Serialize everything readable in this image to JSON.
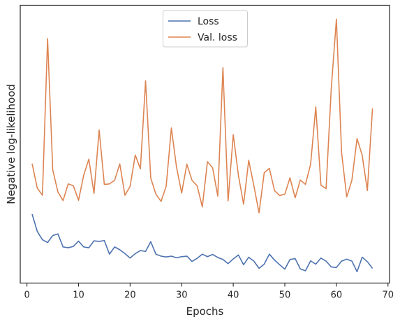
{
  "chart_data": {
    "type": "line",
    "xlabel": "Epochs",
    "ylabel": "Negative log-likelihood",
    "xlim": [
      -1.3,
      70.3
    ],
    "ylim": [
      0,
      100
    ],
    "xticks": [
      0,
      10,
      20,
      30,
      40,
      50,
      60,
      70
    ],
    "yticks": [],
    "grid": false,
    "legend_position": "top-center",
    "x": [
      1,
      2,
      3,
      4,
      5,
      6,
      7,
      8,
      9,
      10,
      11,
      12,
      13,
      14,
      15,
      16,
      17,
      18,
      19,
      20,
      21,
      22,
      23,
      24,
      25,
      26,
      27,
      28,
      29,
      30,
      31,
      32,
      33,
      34,
      35,
      36,
      37,
      38,
      39,
      40,
      41,
      42,
      43,
      44,
      45,
      46,
      47,
      48,
      49,
      50,
      51,
      52,
      53,
      54,
      55,
      56,
      57,
      58,
      59,
      60,
      61,
      62,
      63,
      64,
      65,
      66,
      67
    ],
    "series": [
      {
        "name": "Loss",
        "color": "#4c72b0",
        "values": [
          24.8,
          18.6,
          15.6,
          14.6,
          17.1,
          17.7,
          13.0,
          12.7,
          13.2,
          15.1,
          13.0,
          12.7,
          15.2,
          15.0,
          15.3,
          10.4,
          13.0,
          12.0,
          10.6,
          9.0,
          10.6,
          11.7,
          11.4,
          14.9,
          10.4,
          9.7,
          9.4,
          9.7,
          9.1,
          9.5,
          9.7,
          7.8,
          8.9,
          10.4,
          9.5,
          10.3,
          9.2,
          8.5,
          7.0,
          8.7,
          10.1,
          6.6,
          9.3,
          7.9,
          5.3,
          6.8,
          10.4,
          8.3,
          6.6,
          5.0,
          8.5,
          8.8,
          5.1,
          4.4,
          8.0,
          6.8,
          9.0,
          7.9,
          5.8,
          5.6,
          7.9,
          8.6,
          7.9,
          4.1,
          9.3,
          7.7,
          5.3
        ]
      },
      {
        "name": "Val. loss",
        "color": "#dd8452",
        "values": [
          43.0,
          34.2,
          31.6,
          88.0,
          40.8,
          32.8,
          29.7,
          35.7,
          35.0,
          29.8,
          38.8,
          44.6,
          32.3,
          55.1,
          35.5,
          35.7,
          37.0,
          42.9,
          31.6,
          34.8,
          46.1,
          41.1,
          72.8,
          37.8,
          32.0,
          29.4,
          34.9,
          55.8,
          41.7,
          32.4,
          42.8,
          37.0,
          35.0,
          27.4,
          43.7,
          41.5,
          31.3,
          77.5,
          29.6,
          53.4,
          38.8,
          28.4,
          44.2,
          35.0,
          25.3,
          39.7,
          41.3,
          33.3,
          31.5,
          32.0,
          37.9,
          30.7,
          37.1,
          35.5,
          42.8,
          63.4,
          35.2,
          34.0,
          70.0,
          95.0,
          47.0,
          31.0,
          37.0,
          52.0,
          46.0,
          33.3,
          62.9
        ]
      }
    ]
  }
}
